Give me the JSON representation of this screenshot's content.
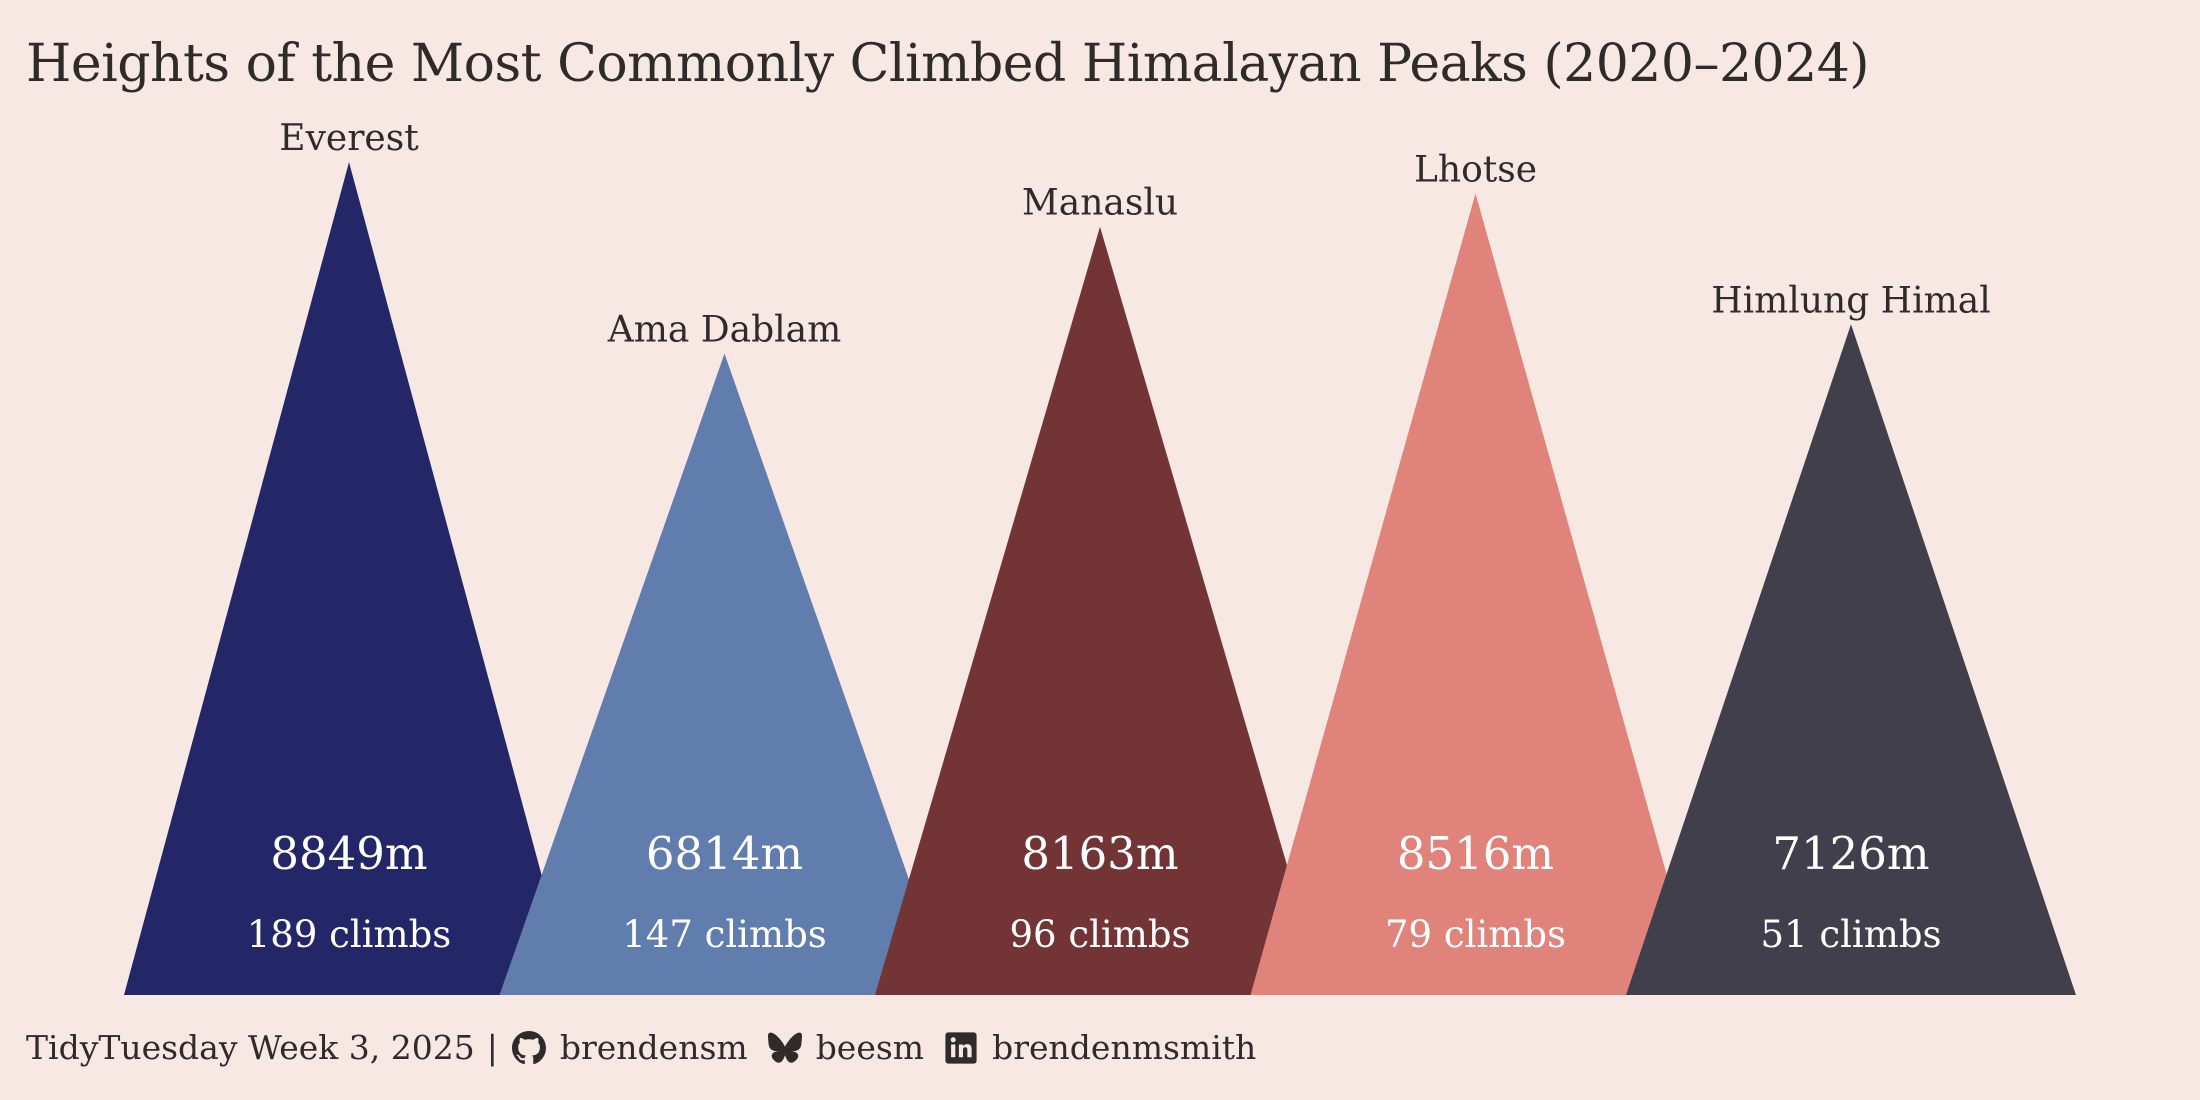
{
  "title": "Heights of the Most Commonly Climbed Himalayan Peaks (2020–2024)",
  "chart_data": {
    "type": "bar",
    "mark": "triangle",
    "categories": [
      "Everest",
      "Ama Dablam",
      "Manaslu",
      "Lhotse",
      "Himlung Himal"
    ],
    "values": [
      8849,
      6814,
      8163,
      8516,
      7126
    ],
    "height_labels": [
      "8849m",
      "6814m",
      "8163m",
      "8516m",
      "7126m"
    ],
    "climbs": [
      189,
      147,
      96,
      79,
      51
    ],
    "climb_labels": [
      "189 climbs",
      "147 climbs",
      "96 climbs",
      "79 climbs",
      "51 climbs"
    ],
    "colors": [
      "#232667",
      "#607dae",
      "#733436",
      "#e0837a",
      "#403f4b"
    ],
    "title": "Heights of the Most Commonly Climbed Himalayan Peaks (2020–2024)",
    "xlabel": "",
    "ylabel": "",
    "grid": false,
    "legend": "none"
  },
  "footer": {
    "source": "TidyTuesday Week 3, 2025",
    "separator": "|",
    "github_handle": "brendensm",
    "bluesky_handle": "beesm",
    "linkedin_handle": "brendenmsmith",
    "icons": [
      "github-icon",
      "bluesky-icon",
      "linkedin-icon"
    ]
  }
}
